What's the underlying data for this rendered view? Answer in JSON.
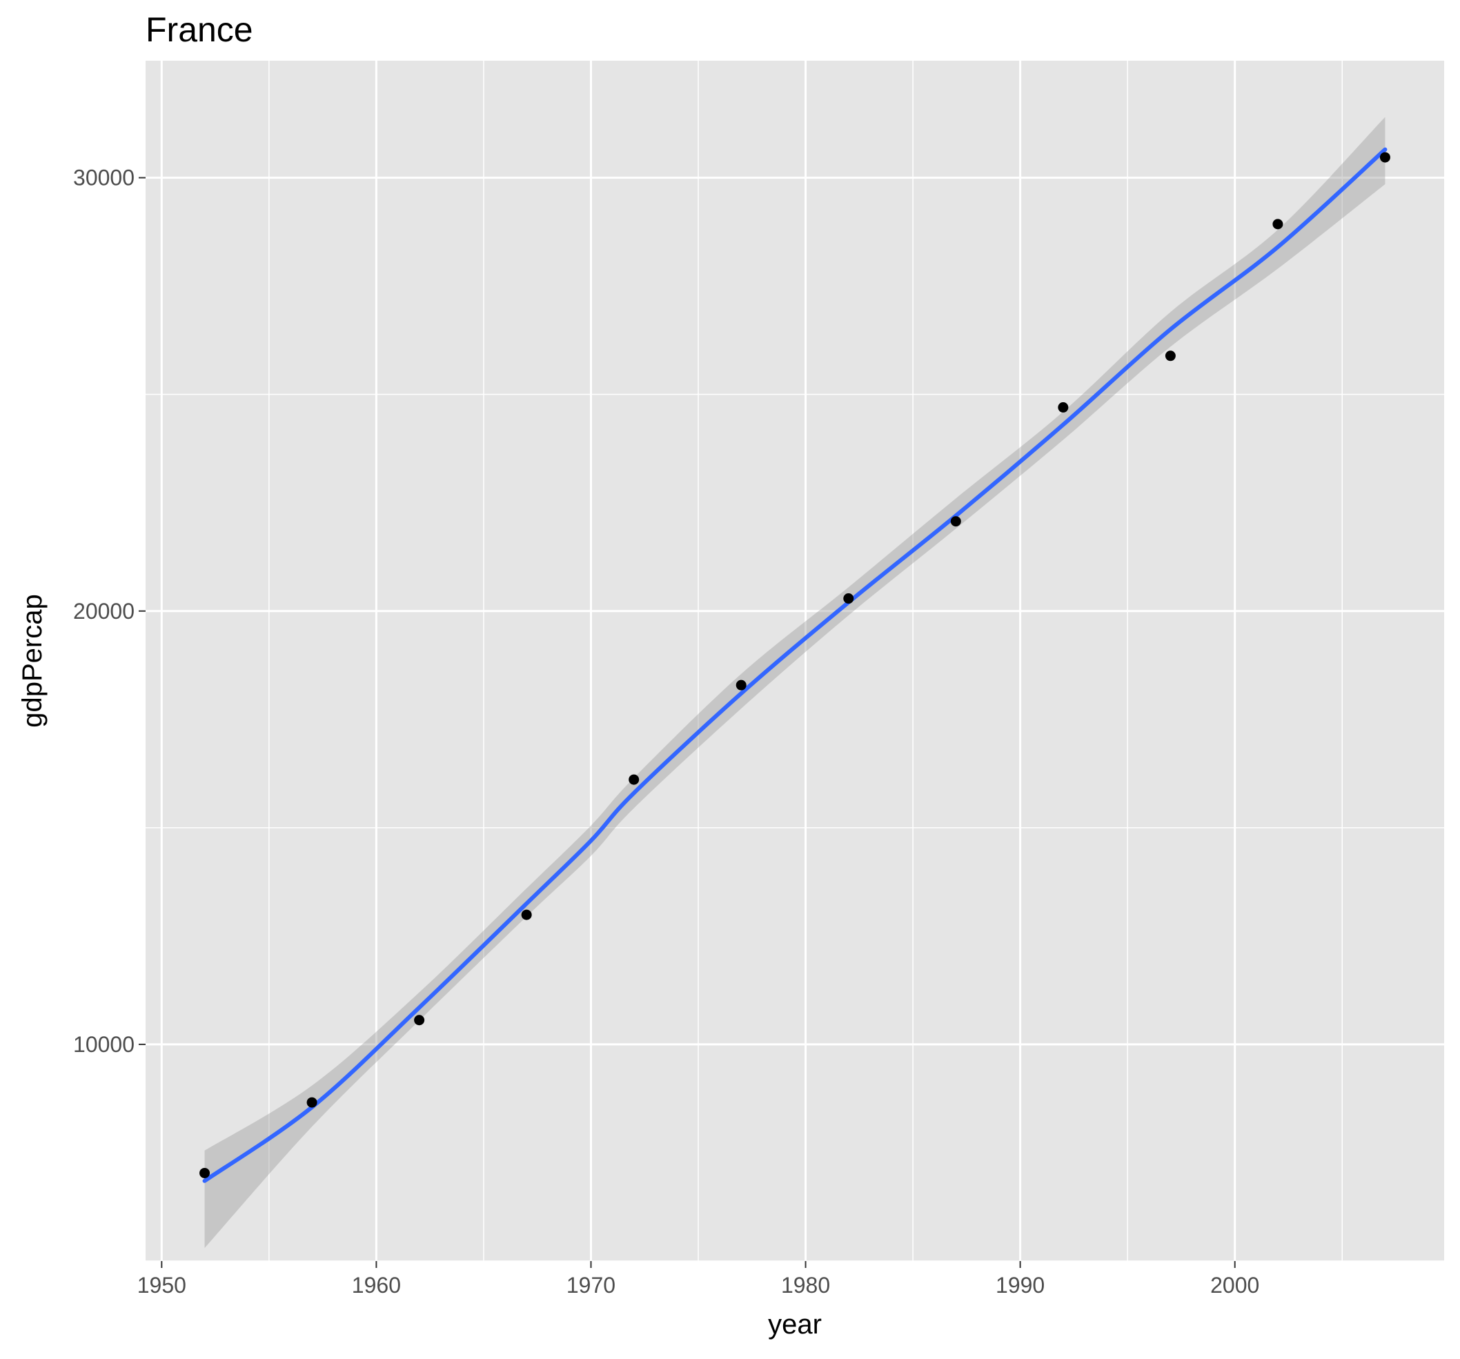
{
  "chart_data": {
    "type": "scatter",
    "title": "France",
    "xlabel": "year",
    "ylabel": "gdpPercap",
    "xlim": [
      1949.25,
      2009.75
    ],
    "ylim": [
      5000,
      32700
    ],
    "xticks": [
      1950,
      1960,
      1970,
      1980,
      1990,
      2000
    ],
    "xtick_labels": [
      "1950",
      "1960",
      "1970",
      "1980",
      "1990",
      "2000"
    ],
    "yticks": [
      10000,
      20000,
      30000
    ],
    "ytick_labels": [
      "10000",
      "20000",
      "30000"
    ],
    "grid": true,
    "legend": "none",
    "series": [
      {
        "type": "points",
        "color": "#000000",
        "x": [
          1952,
          1957,
          1962,
          1967,
          1972,
          1977,
          1982,
          1987,
          1992,
          1997,
          2002,
          2007
        ],
        "y": [
          7030,
          8660,
          10560,
          12990,
          16110,
          18290,
          20290,
          22070,
          24700,
          25890,
          28930,
          30470
        ]
      },
      {
        "type": "smooth",
        "color": "#3366ff",
        "band_color": "#999999",
        "x": [
          1952,
          1957,
          1962,
          1967,
          1970,
          1972,
          1977,
          1982,
          1987,
          1992,
          1997,
          2002,
          2007
        ],
        "y": [
          6850,
          8550,
          10850,
          13250,
          14700,
          15800,
          18100,
          20200,
          22200,
          24300,
          26500,
          28400,
          30650
        ],
        "y_lower": [
          5300,
          8100,
          10550,
          12950,
          14350,
          15450,
          17750,
          19900,
          21900,
          23950,
          26100,
          27900,
          29850
        ],
        "y_upper": [
          7550,
          9050,
          11200,
          13600,
          15050,
          16150,
          18550,
          20550,
          22600,
          24600,
          26900,
          28800,
          31400
        ]
      }
    ]
  }
}
